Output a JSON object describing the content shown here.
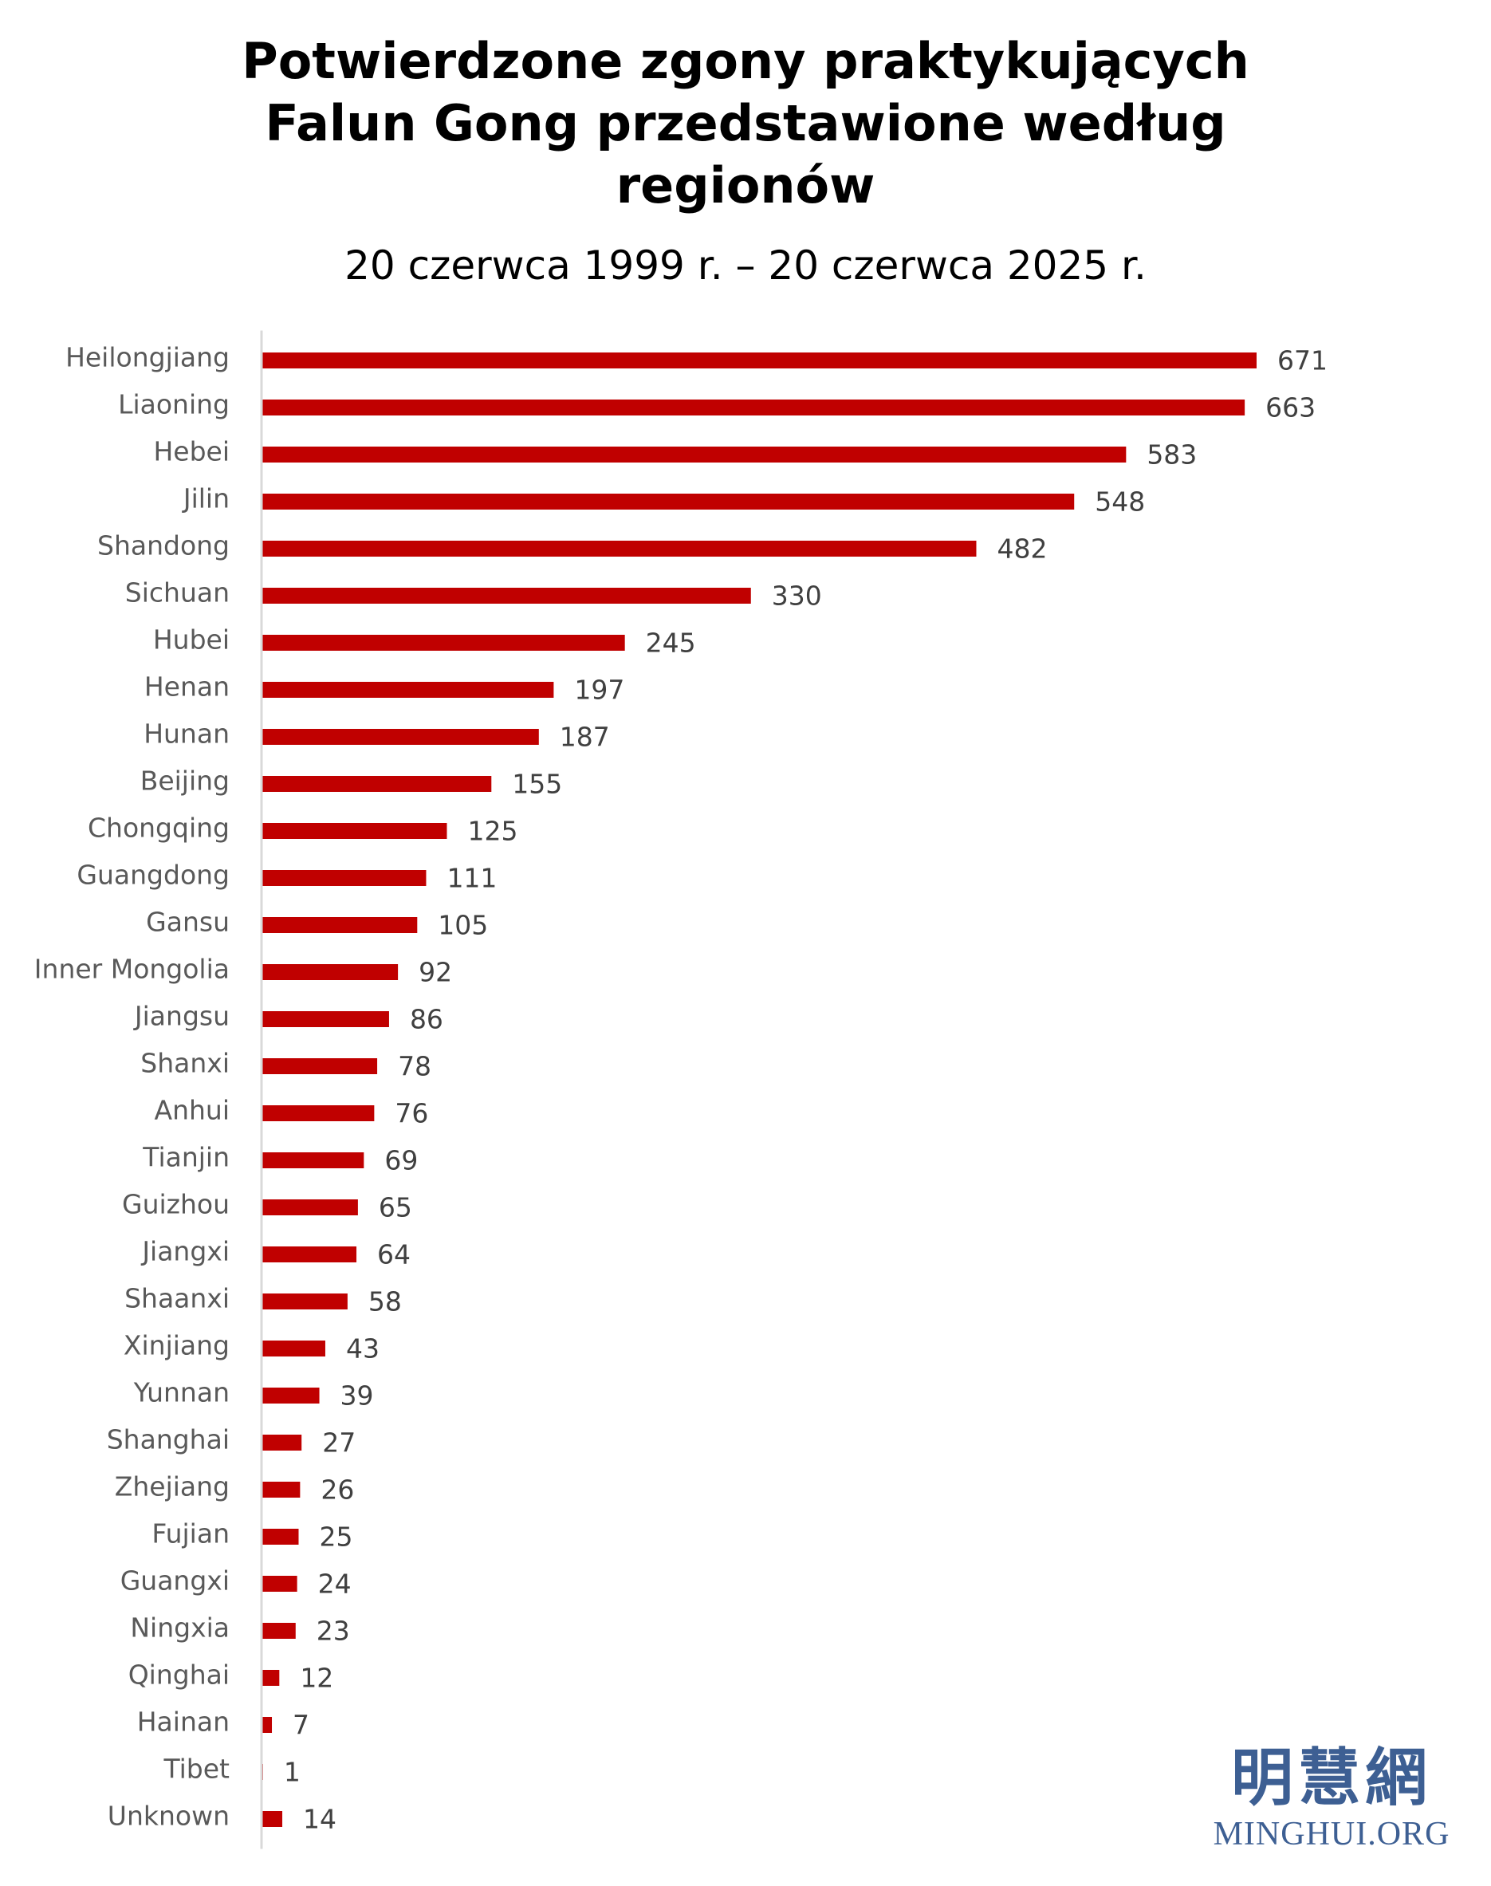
{
  "chart_data": {
    "type": "bar",
    "orientation": "horizontal",
    "title": "Potwierdzone zgony praktykujących Falun Gong przedstawione według regionów",
    "title_lines": [
      "Potwierdzone zgony praktykujących",
      "Falun Gong przedstawione według",
      "regionów"
    ],
    "subtitle": "20 czerwca 1999 r. – 20 czerwca 2025 r.",
    "categories": [
      "Heilongjiang",
      "Liaoning",
      "Hebei",
      "Jilin",
      "Shandong",
      "Sichuan",
      "Hubei",
      "Henan",
      "Hunan",
      "Beijing",
      "Chongqing",
      "Guangdong",
      "Gansu",
      "Inner Mongolia",
      "Jiangsu",
      "Shanxi",
      "Anhui",
      "Tianjin",
      "Guizhou",
      "Jiangxi",
      "Shaanxi",
      "Xinjiang",
      "Yunnan",
      "Shanghai",
      "Zhejiang",
      "Fujian",
      "Guangxi",
      "Ningxia",
      "Qinghai",
      "Hainan",
      "Tibet",
      "Unknown"
    ],
    "values": [
      671,
      663,
      583,
      548,
      482,
      330,
      245,
      197,
      187,
      155,
      125,
      111,
      105,
      92,
      86,
      78,
      76,
      69,
      65,
      64,
      58,
      43,
      39,
      27,
      26,
      25,
      24,
      23,
      12,
      7,
      1,
      14
    ],
    "xlim": [
      0,
      671
    ],
    "bar_color": "#c00000",
    "axis_color": "#d9d9d9",
    "data_labels": true,
    "grid": false,
    "legend": false
  },
  "logo": {
    "cjk": "明慧網",
    "text": "MINGHUI.ORG",
    "color": "#3d5f93"
  }
}
